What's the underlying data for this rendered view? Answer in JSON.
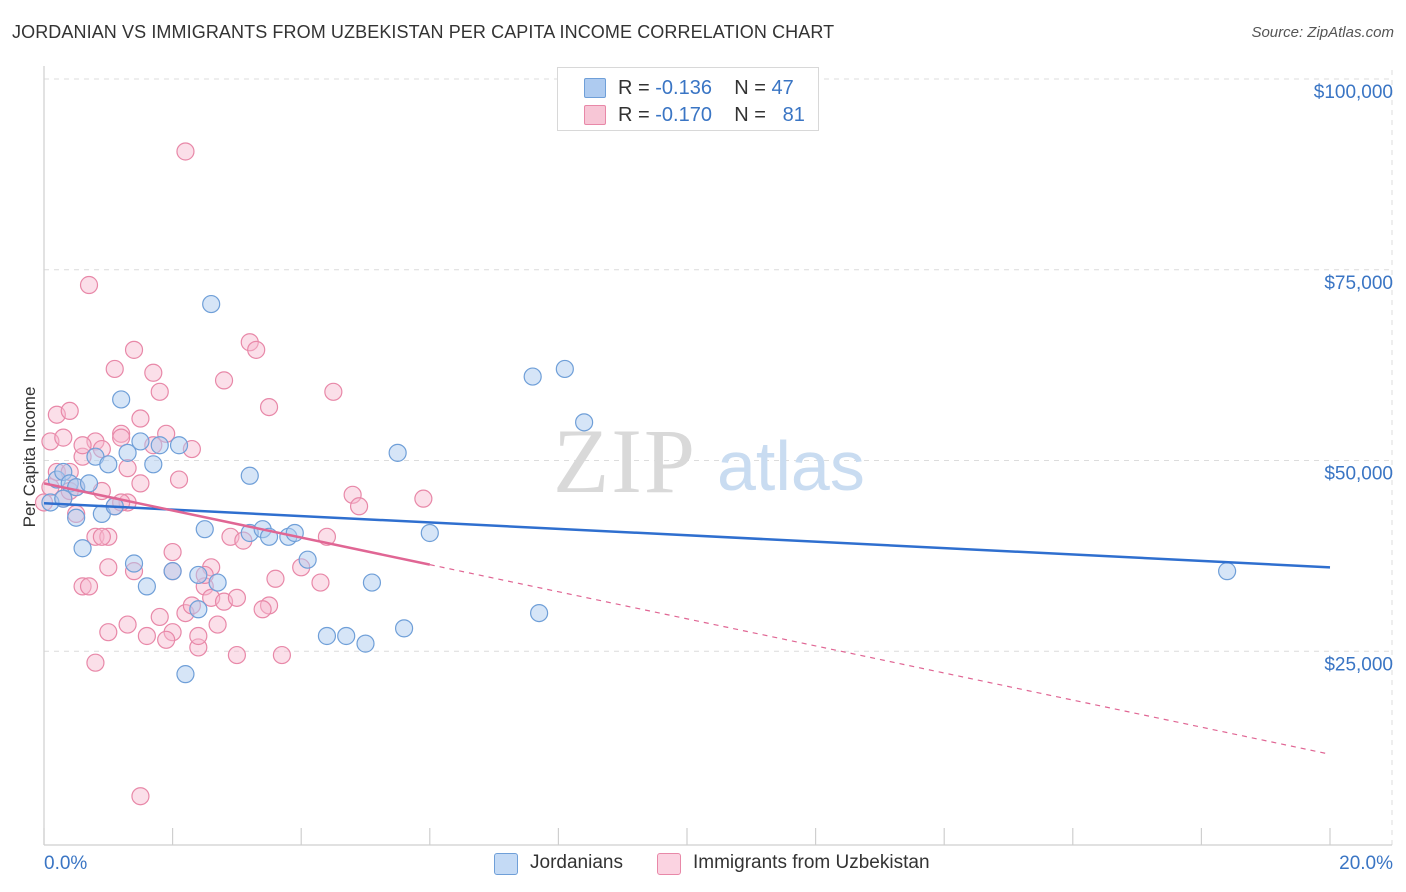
{
  "title": "JORDANIAN VS IMMIGRANTS FROM UZBEKISTAN PER CAPITA INCOME CORRELATION CHART",
  "source": "Source: ZipAtlas.com",
  "watermark": {
    "zip": "ZIP",
    "atlas": "atlas"
  },
  "legend_top": {
    "rows": [
      {
        "r_label": "R = ",
        "r_value": "-0.136",
        "n_label": "N = ",
        "n_value": "47"
      },
      {
        "r_label": "R = ",
        "r_value": "-0.170",
        "n_label": "N = ",
        "n_value": "81"
      }
    ]
  },
  "legend_bottom": {
    "series1": "Jordanians",
    "series2": "Immigrants from Uzbekistan"
  },
  "colors": {
    "blue_fill": "#aecbf0",
    "blue_stroke": "#6f9fd8",
    "blue_line": "#2f6fcf",
    "pink_fill": "#f7b9ce",
    "pink_stroke": "#e888a8",
    "pink_line": "#e06694",
    "tick_text": "#3a75c4",
    "grid": "#dcdcdc"
  },
  "chart_data": {
    "type": "scatter",
    "title": "JORDANIAN VS IMMIGRANTS FROM UZBEKISTAN PER CAPITA INCOME CORRELATION CHART",
    "xlabel": "",
    "ylabel": "Per Capita Income",
    "xlim": [
      0,
      20
    ],
    "ylim": [
      0,
      105000
    ],
    "x_tick_labels": [
      "0.0%",
      "20.0%"
    ],
    "y_ticks": [
      {
        "value": 25000,
        "label": "$25,000"
      },
      {
        "value": 50000,
        "label": "$50,000"
      },
      {
        "value": 75000,
        "label": "$75,000"
      },
      {
        "value": 100000,
        "label": "$100,000"
      }
    ],
    "series": [
      {
        "name": "Jordanians",
        "R": -0.136,
        "N": 47,
        "trend": {
          "x0": 0.0,
          "y0": 44400,
          "x1": 20.0,
          "y1": 36000,
          "solid_to": 20.0
        },
        "points": [
          [
            0.1,
            44500
          ],
          [
            0.2,
            47500
          ],
          [
            0.3,
            48500
          ],
          [
            0.4,
            47000
          ],
          [
            0.5,
            46500
          ],
          [
            0.5,
            42500
          ],
          [
            0.6,
            38500
          ],
          [
            0.7,
            47000
          ],
          [
            0.8,
            50500
          ],
          [
            0.9,
            43000
          ],
          [
            1.0,
            49500
          ],
          [
            1.1,
            44000
          ],
          [
            1.2,
            58000
          ],
          [
            1.3,
            51000
          ],
          [
            1.5,
            52500
          ],
          [
            1.6,
            33500
          ],
          [
            1.7,
            49500
          ],
          [
            1.8,
            52000
          ],
          [
            2.0,
            35500
          ],
          [
            2.1,
            52000
          ],
          [
            2.2,
            22000
          ],
          [
            2.4,
            30500
          ],
          [
            2.4,
            35000
          ],
          [
            2.5,
            41000
          ],
          [
            2.6,
            70500
          ],
          [
            2.7,
            34000
          ],
          [
            3.2,
            40500
          ],
          [
            3.2,
            48000
          ],
          [
            3.4,
            41000
          ],
          [
            3.5,
            40000
          ],
          [
            3.8,
            40000
          ],
          [
            3.9,
            40500
          ],
          [
            4.1,
            37000
          ],
          [
            4.4,
            27000
          ],
          [
            4.7,
            27000
          ],
          [
            5.0,
            26000
          ],
          [
            5.1,
            34000
          ],
          [
            5.5,
            51000
          ],
          [
            5.6,
            28000
          ],
          [
            6.0,
            40500
          ],
          [
            7.6,
            61000
          ],
          [
            7.7,
            30000
          ],
          [
            8.1,
            62000
          ],
          [
            8.4,
            55000
          ],
          [
            18.4,
            35500
          ],
          [
            0.3,
            45000
          ],
          [
            1.4,
            36500
          ]
        ]
      },
      {
        "name": "Immigrants from Uzbekistan",
        "R": -0.17,
        "N": 81,
        "trend": {
          "x0": 0.0,
          "y0": 47000,
          "x1": 20.0,
          "y1": 11500,
          "solid_to": 6.0
        },
        "points": [
          [
            0.0,
            44500
          ],
          [
            0.1,
            46500
          ],
          [
            0.1,
            52500
          ],
          [
            0.2,
            56000
          ],
          [
            0.2,
            48500
          ],
          [
            0.3,
            53000
          ],
          [
            0.3,
            45000
          ],
          [
            0.4,
            56500
          ],
          [
            0.4,
            48500
          ],
          [
            0.5,
            46500
          ],
          [
            0.5,
            43000
          ],
          [
            0.6,
            33500
          ],
          [
            0.6,
            50500
          ],
          [
            0.7,
            73000
          ],
          [
            0.7,
            33500
          ],
          [
            0.8,
            52500
          ],
          [
            0.8,
            40000
          ],
          [
            0.8,
            23500
          ],
          [
            0.9,
            46000
          ],
          [
            0.9,
            51500
          ],
          [
            1.0,
            40000
          ],
          [
            1.0,
            27500
          ],
          [
            1.1,
            62000
          ],
          [
            1.1,
            44000
          ],
          [
            1.2,
            53500
          ],
          [
            1.2,
            53000
          ],
          [
            1.3,
            44500
          ],
          [
            1.3,
            49000
          ],
          [
            1.3,
            28500
          ],
          [
            1.4,
            64500
          ],
          [
            1.4,
            35500
          ],
          [
            1.5,
            55500
          ],
          [
            1.5,
            47000
          ],
          [
            1.6,
            27000
          ],
          [
            1.7,
            61500
          ],
          [
            1.7,
            52000
          ],
          [
            1.8,
            59000
          ],
          [
            1.8,
            29500
          ],
          [
            1.9,
            53500
          ],
          [
            2.0,
            27500
          ],
          [
            2.0,
            38000
          ],
          [
            2.0,
            35500
          ],
          [
            2.1,
            47500
          ],
          [
            2.2,
            90500
          ],
          [
            2.2,
            30000
          ],
          [
            2.3,
            51500
          ],
          [
            2.4,
            25500
          ],
          [
            2.4,
            27000
          ],
          [
            2.5,
            33500
          ],
          [
            2.6,
            36000
          ],
          [
            2.6,
            32000
          ],
          [
            2.7,
            28500
          ],
          [
            2.8,
            60500
          ],
          [
            2.8,
            31500
          ],
          [
            2.9,
            40000
          ],
          [
            3.0,
            32000
          ],
          [
            3.0,
            24500
          ],
          [
            3.1,
            39500
          ],
          [
            3.2,
            65500
          ],
          [
            3.3,
            64500
          ],
          [
            3.5,
            57000
          ],
          [
            3.5,
            31000
          ],
          [
            3.6,
            34500
          ],
          [
            3.7,
            24500
          ],
          [
            4.0,
            36000
          ],
          [
            4.3,
            34000
          ],
          [
            4.4,
            40000
          ],
          [
            4.5,
            59000
          ],
          [
            4.8,
            45500
          ],
          [
            4.9,
            44000
          ],
          [
            5.9,
            45000
          ],
          [
            1.5,
            6000
          ],
          [
            1.2,
            44500
          ],
          [
            0.9,
            40000
          ],
          [
            1.9,
            26500
          ],
          [
            2.5,
            35000
          ],
          [
            0.6,
            52000
          ],
          [
            1.0,
            36000
          ],
          [
            2.3,
            31000
          ],
          [
            3.4,
            30500
          ],
          [
            0.4,
            46000
          ]
        ]
      }
    ]
  }
}
